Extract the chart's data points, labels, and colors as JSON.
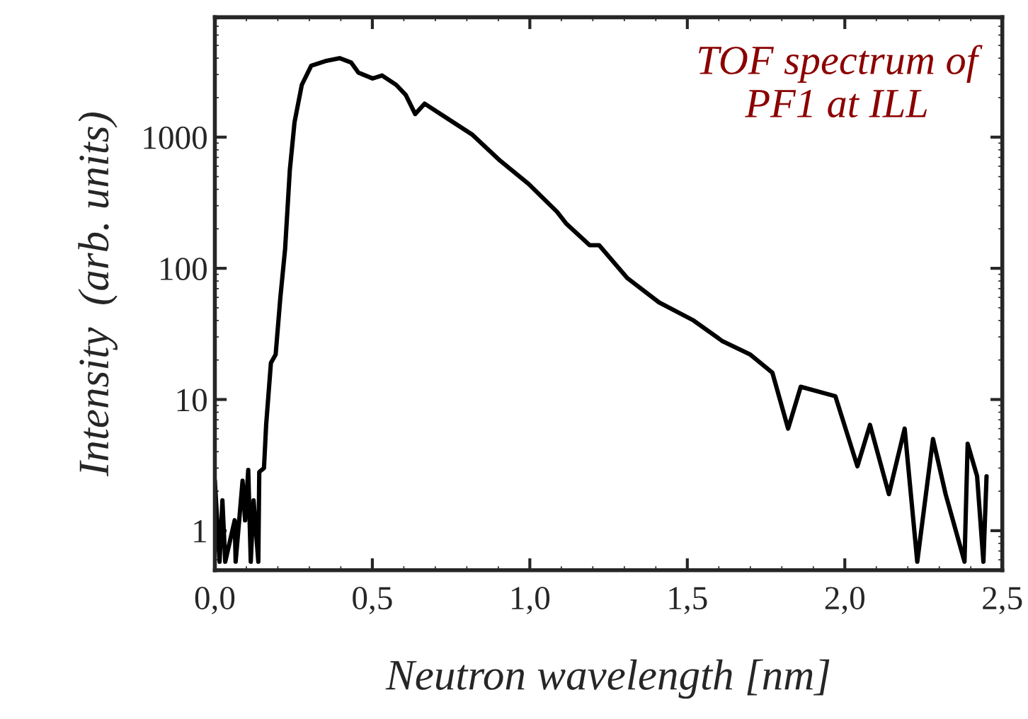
{
  "chart_data": {
    "type": "line",
    "xlabel": "Neutron wavelength [nm]",
    "ylabel": "Intensity  (arb. units)",
    "annotations": [
      "TOF spectrum of\nPF1 at ILL"
    ],
    "log": "y",
    "grid": false,
    "marker": "none",
    "line_style": "solid",
    "xlim": [
      0,
      2.5
    ],
    "ylim": [
      0.5,
      8200
    ],
    "xticks": [
      {
        "value": 0,
        "label": "0,0"
      },
      {
        "value": 0.5,
        "label": "0,5"
      },
      {
        "value": 1.0,
        "label": "1,0"
      },
      {
        "value": 1.5,
        "label": "1,5"
      },
      {
        "value": 2.0,
        "label": "2,0"
      },
      {
        "value": 2.5,
        "label": "2,5"
      }
    ],
    "yticks": [
      1,
      10,
      100,
      1000
    ],
    "series": [
      {
        "color": "#000000",
        "x": [
          0.0,
          0.015,
          0.024,
          0.033,
          0.063,
          0.066,
          0.088,
          0.096,
          0.106,
          0.114,
          0.123,
          0.138,
          0.141,
          0.156,
          0.163,
          0.178,
          0.193,
          0.208,
          0.223,
          0.238,
          0.253,
          0.276,
          0.306,
          0.351,
          0.396,
          0.433,
          0.456,
          0.501,
          0.531,
          0.576,
          0.606,
          0.636,
          0.666,
          0.726,
          0.816,
          0.906,
          0.996,
          1.086,
          1.115,
          1.19,
          1.22,
          1.31,
          1.41,
          1.52,
          1.61,
          1.7,
          1.77,
          1.82,
          1.86,
          1.97,
          2.04,
          2.08,
          2.14,
          2.19,
          2.23,
          2.28,
          2.32,
          2.38,
          2.39,
          2.42,
          2.44,
          2.45
        ],
        "values": [
          2.4,
          0.58,
          1.7,
          0.58,
          1.2,
          0.58,
          2.4,
          1.2,
          2.9,
          0.58,
          1.7,
          0.58,
          2.8,
          3.0,
          6.5,
          19,
          22,
          60,
          140,
          560,
          1300,
          2500,
          3500,
          3800,
          4000,
          3700,
          3100,
          2800,
          2950,
          2500,
          2100,
          1500,
          1800,
          1450,
          1050,
          660,
          440,
          270,
          220,
          150,
          150,
          84,
          55,
          40,
          28,
          22,
          16,
          6,
          12.5,
          10.6,
          3.1,
          6.4,
          1.9,
          6,
          0.58,
          5,
          1.9,
          0.58,
          4.6,
          2.6,
          0.58,
          2.6
        ]
      }
    ]
  }
}
